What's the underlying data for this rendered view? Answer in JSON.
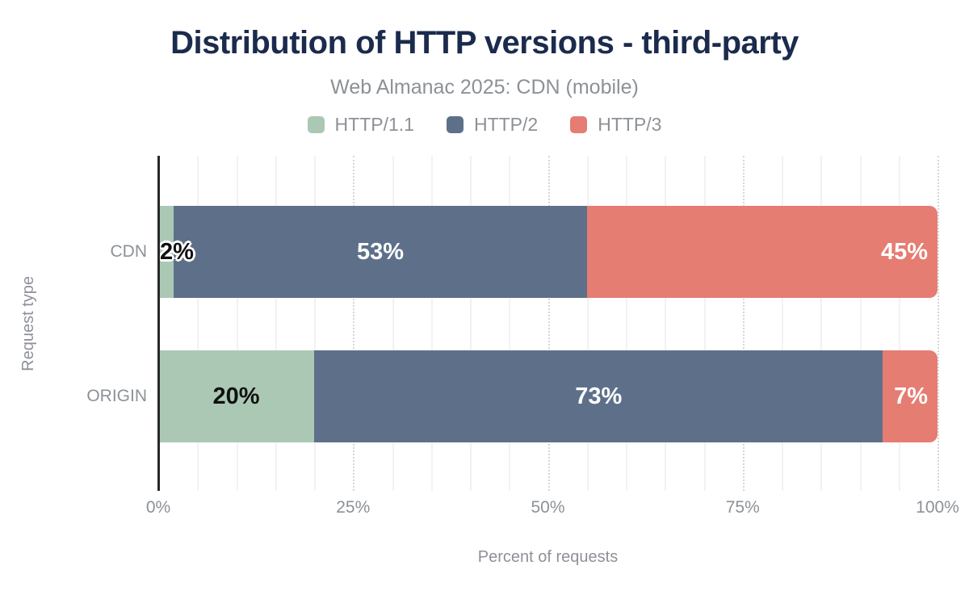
{
  "chart_data": {
    "type": "bar",
    "orientation": "horizontal",
    "stacked": true,
    "title": "Distribution of HTTP versions - third-party",
    "subtitle": "Web Almanac 2025: CDN (mobile)",
    "categories": [
      "CDN",
      "ORIGIN"
    ],
    "series": [
      {
        "name": "HTTP/1.1",
        "color": "#abc8b5",
        "label_color": "#111111",
        "values": [
          2,
          20
        ]
      },
      {
        "name": "HTTP/2",
        "color": "#5e7089",
        "label_color": "#ffffff",
        "values": [
          53,
          73
        ]
      },
      {
        "name": "HTTP/3",
        "color": "#e57d72",
        "label_color": "#ffffff",
        "values": [
          45,
          7
        ]
      }
    ],
    "xlabel": "Percent of requests",
    "ylabel": "Request type",
    "x_ticks": [
      "0%",
      "25%",
      "50%",
      "75%",
      "100%"
    ],
    "tick_positions": [
      0,
      25,
      50,
      75,
      100
    ],
    "xlim": [
      0,
      100
    ],
    "grid": {
      "minor_step": 5,
      "major_step": 25
    },
    "legend_position": "top",
    "colors": {
      "title": "#1b2b4d",
      "muted_text": "#8d9197",
      "axis_line": "#26282b"
    }
  }
}
